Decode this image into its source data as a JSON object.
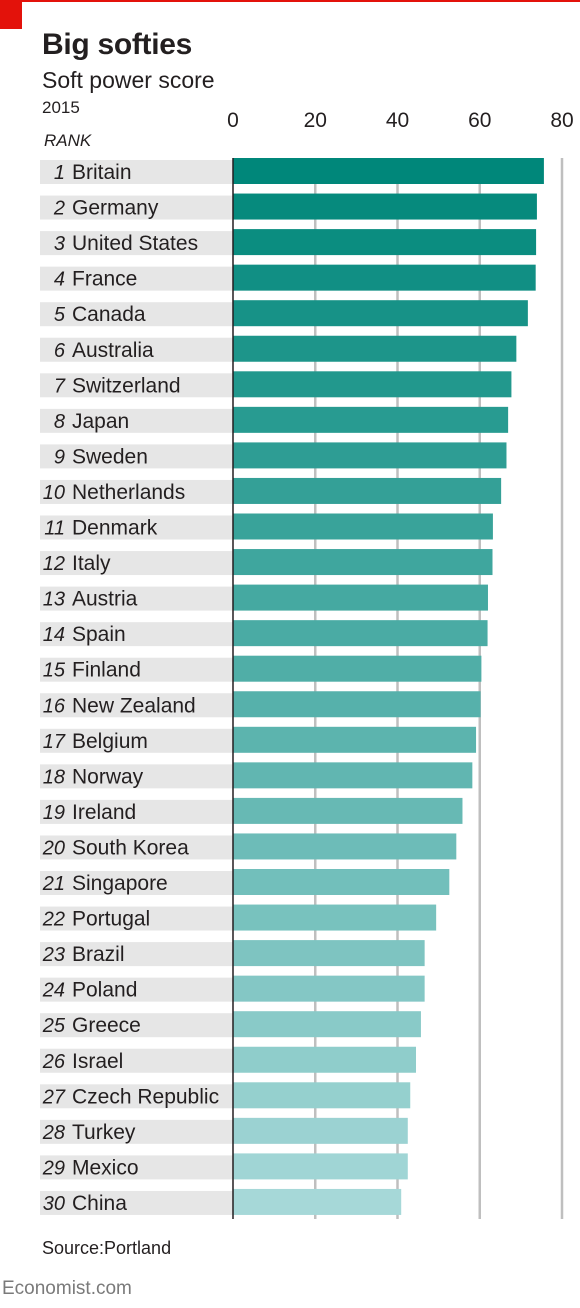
{
  "header": {
    "title": "Big softies",
    "subtitle": "Soft power score",
    "year": "2015",
    "rank_label": "RANK"
  },
  "footer": {
    "source": "Source:Portland",
    "brand": "Economist.com"
  },
  "colors": {
    "accent": "#e3120b",
    "bar_top": "#00877a",
    "bar_bottom": "#a6d8d8",
    "row_band": "#e6e6e6",
    "grid": "#bfbfbf"
  },
  "chart_data": {
    "type": "bar",
    "orientation": "horizontal",
    "xlim": [
      0,
      80
    ],
    "xticks": [
      0,
      20,
      40,
      60,
      80
    ],
    "grid": true,
    "ranks": [
      1,
      2,
      3,
      4,
      5,
      6,
      7,
      8,
      9,
      10,
      11,
      12,
      13,
      14,
      15,
      16,
      17,
      18,
      19,
      20,
      21,
      22,
      23,
      24,
      25,
      26,
      27,
      28,
      29,
      30
    ],
    "categories": [
      "Britain",
      "Germany",
      "United States",
      "France",
      "Canada",
      "Australia",
      "Switzerland",
      "Japan",
      "Sweden",
      "Netherlands",
      "Denmark",
      "Italy",
      "Austria",
      "Spain",
      "Finland",
      "New Zealand",
      "Belgium",
      "Norway",
      "Ireland",
      "South Korea",
      "Singapore",
      "Portugal",
      "Brazil",
      "Poland",
      "Greece",
      "Israel",
      "Czech Republic",
      "Turkey",
      "Mexico",
      "China"
    ],
    "values": [
      75.6,
      73.9,
      73.7,
      73.6,
      71.7,
      68.9,
      67.7,
      66.9,
      66.5,
      65.2,
      63.2,
      63.1,
      62.0,
      61.9,
      60.4,
      60.2,
      59.1,
      58.2,
      55.8,
      54.3,
      52.6,
      49.4,
      46.6,
      46.6,
      45.7,
      44.5,
      43.1,
      42.5,
      42.5,
      40.9
    ],
    "title": "Big softies",
    "subtitle": "Soft power score"
  }
}
